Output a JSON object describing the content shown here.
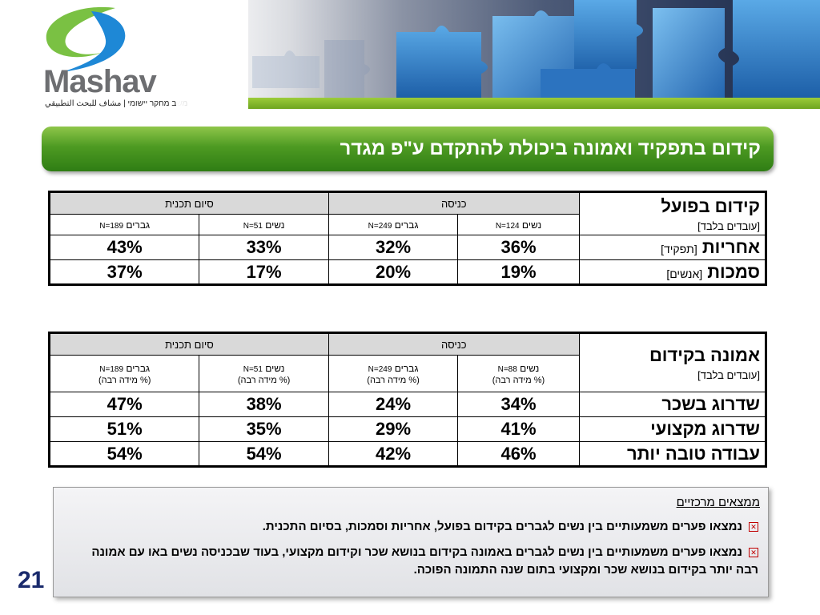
{
  "logo": {
    "word": "Mashav",
    "tagline": "משב מחקר יישומי | مشاف للبحث التطبيقي",
    "swoosh-icon": "green-blue-swoosh"
  },
  "colors": {
    "title_green": "#4d9a22",
    "slide_number_blue": "#1a2a6c",
    "bullet_red": "#c00000"
  },
  "title": "קידום בתפקיד ואמונה ביכולת להתקדם ע\"פ מגדר",
  "table1": {
    "corner_main": "קידום בפועל",
    "corner_sub": "[עובדים בלבד]",
    "groups": [
      "כניסה",
      "סיום תכנית"
    ],
    "subheaders": [
      {
        "label": "נשים",
        "n": "N=124"
      },
      {
        "label": "גברים",
        "n": "N=249"
      },
      {
        "label": "נשים",
        "n": "N=51"
      },
      {
        "label": "גברים",
        "n": "N=189"
      }
    ],
    "rows": [
      {
        "label": "אחריות",
        "bracket": "[תפקיד]",
        "values": [
          "36%",
          "32%",
          "33%",
          "43%"
        ]
      },
      {
        "label": "סמכות",
        "bracket": "[אנשים]",
        "values": [
          "19%",
          "20%",
          "17%",
          "37%"
        ]
      }
    ]
  },
  "table2": {
    "corner_main": "אמונה בקידום",
    "corner_sub": "[עובדים בלבד]",
    "groups": [
      "כניסה",
      "סיום תכנית"
    ],
    "subheaders": [
      {
        "label": "נשים",
        "n": "N=88",
        "pct": "(% מידה רבה)"
      },
      {
        "label": "גברים",
        "n": "N=249",
        "pct": "(% מידה רבה)"
      },
      {
        "label": "נשים",
        "n": "N=51",
        "pct": "(% מידה רבה)"
      },
      {
        "label": "גברים",
        "n": "N=189",
        "pct": "(% מידה רבה)"
      }
    ],
    "rows": [
      {
        "label": "שדרוג בשכר",
        "values": [
          "34%",
          "24%",
          "38%",
          "47%"
        ]
      },
      {
        "label": "שדרוג מקצועי",
        "values": [
          "41%",
          "29%",
          "35%",
          "51%"
        ]
      },
      {
        "label": "עבודה טובה יותר",
        "values": [
          "46%",
          "42%",
          "54%",
          "54%"
        ]
      }
    ]
  },
  "findings": {
    "title": "ממצאים מרכזיים",
    "items": [
      "נמצאו פערים משמעותיים בין נשים לגברים בקידום בפועל, אחריות וסמכות, בסיום התכנית.",
      "נמצאו פערים משמעותיים בין נשים לגברים באמונה בקידום בנושא שכר וקידום מקצועי, בעוד שבכניסה נשים באו עם אמונה רבה יותר בקידום בנושא שכר ומקצועי בתום שנה התמונה הפוכה."
    ]
  },
  "slide_number": "21"
}
